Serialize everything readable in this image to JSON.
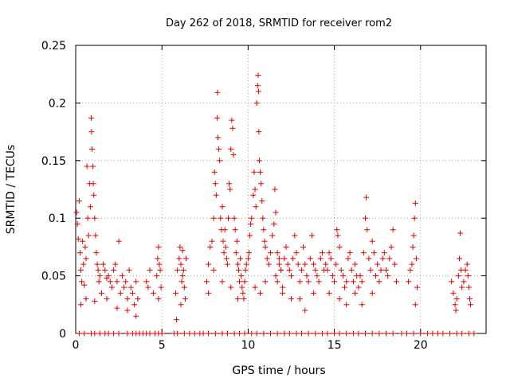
{
  "chart_data": {
    "type": "scatter",
    "title": "Day 262 of 2018, SRMTID for receiver rom2",
    "xlabel": "GPS time / hours",
    "ylabel": "SRMTID / TECUs",
    "xlim": [
      0,
      23.8
    ],
    "ylim": [
      0,
      0.25
    ],
    "xticks": [
      0,
      5,
      10,
      15,
      20
    ],
    "xtick_labels": [
      "0",
      "5",
      "10",
      "15",
      "20"
    ],
    "yticks": [
      0,
      0.05,
      0.1,
      0.15,
      0.2,
      0.25
    ],
    "ytick_labels": [
      "0",
      "0.05",
      "0.1",
      "0.15",
      "0.2",
      "0.25"
    ],
    "grid": true,
    "marker": "+",
    "color": "#e00000",
    "series": [
      {
        "name": "SRMTID",
        "points": [
          [
            0.05,
            0.105
          ],
          [
            0.1,
            0.095
          ],
          [
            0.15,
            0.082
          ],
          [
            0.2,
            0.115
          ],
          [
            0.25,
            0.07
          ],
          [
            0.3,
            0.055
          ],
          [
            0.35,
            0.045
          ],
          [
            0.4,
            0.08
          ],
          [
            0.45,
            0.06
          ],
          [
            0.5,
            0.042
          ],
          [
            0.55,
            0.075
          ],
          [
            0.6,
            0.065
          ],
          [
            0.65,
            0.145
          ],
          [
            0.7,
            0.1
          ],
          [
            0.75,
            0.085
          ],
          [
            0.8,
            0.13
          ],
          [
            0.85,
            0.11
          ],
          [
            0.9,
            0.187
          ],
          [
            0.92,
            0.175
          ],
          [
            0.95,
            0.16
          ],
          [
            1.0,
            0.145
          ],
          [
            1.02,
            0.13
          ],
          [
            1.05,
            0.12
          ],
          [
            1.1,
            0.1
          ],
          [
            1.15,
            0.085
          ],
          [
            1.2,
            0.07
          ],
          [
            1.25,
            0.06
          ],
          [
            1.3,
            0.055
          ],
          [
            1.35,
            0.045
          ],
          [
            1.4,
            0.05
          ],
          [
            1.5,
            0.035
          ],
          [
            1.6,
            0.06
          ],
          [
            1.7,
            0.055
          ],
          [
            1.8,
            0.048
          ],
          [
            1.9,
            0.05
          ],
          [
            2.0,
            0.045
          ],
          [
            2.1,
            0.04
          ],
          [
            2.2,
            0.055
          ],
          [
            2.3,
            0.06
          ],
          [
            2.4,
            0.045
          ],
          [
            2.5,
            0.08
          ],
          [
            2.6,
            0.035
          ],
          [
            2.7,
            0.05
          ],
          [
            2.8,
            0.04
          ],
          [
            2.9,
            0.045
          ],
          [
            3.0,
            0.03
          ],
          [
            3.1,
            0.055
          ],
          [
            3.2,
            0.04
          ],
          [
            3.3,
            0.035
          ],
          [
            3.4,
            0.025
          ],
          [
            3.5,
            0.045
          ],
          [
            3.6,
            0.03
          ],
          [
            0.3,
            0.025
          ],
          [
            0.6,
            0.03
          ],
          [
            1.1,
            0.028
          ],
          [
            1.8,
            0.03
          ],
          [
            2.4,
            0.022
          ],
          [
            3.0,
            0.02
          ],
          [
            3.5,
            0.015
          ],
          [
            4.1,
            0.045
          ],
          [
            4.2,
            0.04
          ],
          [
            4.3,
            0.055
          ],
          [
            4.5,
            0.035
          ],
          [
            4.7,
            0.05
          ],
          [
            4.75,
            0.065
          ],
          [
            4.8,
            0.075
          ],
          [
            4.85,
            0.06
          ],
          [
            4.9,
            0.055
          ],
          [
            4.95,
            0.04
          ],
          [
            4.8,
            0.03
          ],
          [
            5.8,
            0.035
          ],
          [
            5.9,
            0.055
          ],
          [
            6.0,
            0.065
          ],
          [
            6.05,
            0.075
          ],
          [
            6.1,
            0.06
          ],
          [
            6.15,
            0.045
          ],
          [
            6.2,
            0.05
          ],
          [
            6.25,
            0.055
          ],
          [
            6.3,
            0.04
          ],
          [
            6.35,
            0.03
          ],
          [
            6.4,
            0.065
          ],
          [
            6.1,
            0.025
          ],
          [
            5.85,
            0.012
          ],
          [
            6.2,
            0.072
          ],
          [
            7.6,
            0.045
          ],
          [
            7.7,
            0.06
          ],
          [
            7.8,
            0.075
          ],
          [
            7.9,
            0.08
          ],
          [
            8.0,
            0.1
          ],
          [
            8.05,
            0.14
          ],
          [
            8.1,
            0.13
          ],
          [
            8.15,
            0.12
          ],
          [
            8.2,
            0.187
          ],
          [
            8.22,
            0.209
          ],
          [
            8.25,
            0.17
          ],
          [
            8.3,
            0.16
          ],
          [
            8.35,
            0.15
          ],
          [
            8.4,
            0.1
          ],
          [
            8.45,
            0.09
          ],
          [
            8.5,
            0.11
          ],
          [
            8.55,
            0.08
          ],
          [
            8.6,
            0.07
          ],
          [
            8.65,
            0.09
          ],
          [
            8.7,
            0.075
          ],
          [
            8.75,
            0.065
          ],
          [
            8.8,
            0.06
          ],
          [
            8.85,
            0.1
          ],
          [
            8.9,
            0.13
          ],
          [
            8.95,
            0.125
          ],
          [
            9.0,
            0.16
          ],
          [
            9.05,
            0.185
          ],
          [
            9.1,
            0.178
          ],
          [
            9.15,
            0.155
          ],
          [
            9.2,
            0.1
          ],
          [
            9.25,
            0.09
          ],
          [
            9.3,
            0.07
          ],
          [
            9.35,
            0.08
          ],
          [
            9.4,
            0.06
          ],
          [
            9.45,
            0.055
          ],
          [
            9.5,
            0.045
          ],
          [
            9.55,
            0.065
          ],
          [
            9.6,
            0.05
          ],
          [
            9.65,
            0.04
          ],
          [
            9.7,
            0.035
          ],
          [
            9.75,
            0.03
          ],
          [
            9.8,
            0.045
          ],
          [
            9.85,
            0.055
          ],
          [
            9.9,
            0.06
          ],
          [
            7.7,
            0.035
          ],
          [
            8.0,
            0.055
          ],
          [
            8.5,
            0.045
          ],
          [
            9.0,
            0.04
          ],
          [
            9.4,
            0.03
          ],
          [
            10.0,
            0.065
          ],
          [
            10.05,
            0.07
          ],
          [
            10.1,
            0.085
          ],
          [
            10.15,
            0.095
          ],
          [
            10.2,
            0.1
          ],
          [
            10.3,
            0.12
          ],
          [
            10.35,
            0.14
          ],
          [
            10.4,
            0.125
          ],
          [
            10.45,
            0.11
          ],
          [
            10.5,
            0.2
          ],
          [
            10.55,
            0.215
          ],
          [
            10.58,
            0.224
          ],
          [
            10.6,
            0.21
          ],
          [
            10.62,
            0.175
          ],
          [
            10.65,
            0.15
          ],
          [
            10.7,
            0.14
          ],
          [
            10.75,
            0.13
          ],
          [
            10.8,
            0.115
          ],
          [
            10.85,
            0.1
          ],
          [
            10.9,
            0.09
          ],
          [
            10.95,
            0.08
          ],
          [
            11.0,
            0.075
          ],
          [
            11.1,
            0.065
          ],
          [
            11.2,
            0.06
          ],
          [
            11.3,
            0.07
          ],
          [
            11.4,
            0.085
          ],
          [
            11.5,
            0.095
          ],
          [
            11.55,
            0.125
          ],
          [
            11.6,
            0.105
          ],
          [
            11.7,
            0.07
          ],
          [
            11.8,
            0.06
          ],
          [
            11.9,
            0.055
          ],
          [
            10.4,
            0.04
          ],
          [
            10.7,
            0.035
          ],
          [
            11.0,
            0.045
          ],
          [
            11.6,
            0.05
          ],
          [
            11.7,
            0.045
          ],
          [
            11.8,
            0.065
          ],
          [
            11.9,
            0.055
          ],
          [
            12.0,
            0.04
          ],
          [
            12.1,
            0.065
          ],
          [
            12.2,
            0.075
          ],
          [
            12.3,
            0.06
          ],
          [
            12.4,
            0.055
          ],
          [
            12.5,
            0.05
          ],
          [
            12.6,
            0.065
          ],
          [
            12.7,
            0.085
          ],
          [
            12.8,
            0.07
          ],
          [
            12.9,
            0.06
          ],
          [
            13.0,
            0.045
          ],
          [
            13.1,
            0.055
          ],
          [
            13.2,
            0.075
          ],
          [
            13.3,
            0.06
          ],
          [
            13.4,
            0.05
          ],
          [
            13.5,
            0.045
          ],
          [
            13.6,
            0.065
          ],
          [
            13.7,
            0.085
          ],
          [
            13.8,
            0.06
          ],
          [
            13.9,
            0.055
          ],
          [
            14.0,
            0.05
          ],
          [
            14.1,
            0.045
          ],
          [
            14.2,
            0.065
          ],
          [
            14.3,
            0.07
          ],
          [
            14.4,
            0.055
          ],
          [
            12.0,
            0.035
          ],
          [
            12.5,
            0.03
          ],
          [
            13.0,
            0.03
          ],
          [
            13.3,
            0.02
          ],
          [
            13.8,
            0.035
          ],
          [
            14.5,
            0.06
          ],
          [
            14.6,
            0.055
          ],
          [
            14.7,
            0.07
          ],
          [
            14.8,
            0.065
          ],
          [
            14.9,
            0.05
          ],
          [
            15.0,
            0.045
          ],
          [
            15.1,
            0.06
          ],
          [
            15.15,
            0.09
          ],
          [
            15.2,
            0.085
          ],
          [
            15.3,
            0.075
          ],
          [
            15.4,
            0.055
          ],
          [
            15.5,
            0.05
          ],
          [
            15.6,
            0.04
          ],
          [
            15.7,
            0.045
          ],
          [
            15.8,
            0.065
          ],
          [
            15.9,
            0.07
          ],
          [
            16.0,
            0.055
          ],
          [
            16.1,
            0.045
          ],
          [
            16.2,
            0.06
          ],
          [
            16.3,
            0.05
          ],
          [
            16.4,
            0.04
          ],
          [
            16.5,
            0.05
          ],
          [
            16.6,
            0.045
          ],
          [
            16.7,
            0.07
          ],
          [
            16.8,
            0.1
          ],
          [
            16.85,
            0.118
          ],
          [
            16.9,
            0.09
          ],
          [
            17.0,
            0.065
          ],
          [
            17.1,
            0.055
          ],
          [
            17.2,
            0.08
          ],
          [
            17.3,
            0.07
          ],
          [
            17.4,
            0.05
          ],
          [
            17.5,
            0.06
          ],
          [
            17.6,
            0.045
          ],
          [
            17.7,
            0.055
          ],
          [
            17.8,
            0.065
          ],
          [
            17.9,
            0.07
          ],
          [
            18.0,
            0.055
          ],
          [
            18.1,
            0.05
          ],
          [
            18.2,
            0.065
          ],
          [
            18.3,
            0.075
          ],
          [
            18.4,
            0.09
          ],
          [
            18.5,
            0.06
          ],
          [
            18.6,
            0.045
          ],
          [
            14.7,
            0.035
          ],
          [
            15.3,
            0.03
          ],
          [
            15.7,
            0.025
          ],
          [
            16.2,
            0.035
          ],
          [
            16.6,
            0.025
          ],
          [
            17.2,
            0.035
          ],
          [
            19.3,
            0.045
          ],
          [
            19.4,
            0.055
          ],
          [
            19.5,
            0.06
          ],
          [
            19.55,
            0.075
          ],
          [
            19.6,
            0.085
          ],
          [
            19.65,
            0.1
          ],
          [
            19.7,
            0.113
          ],
          [
            19.75,
            0.065
          ],
          [
            19.8,
            0.04
          ],
          [
            19.7,
            0.025
          ],
          [
            21.8,
            0.045
          ],
          [
            21.9,
            0.035
          ],
          [
            22.0,
            0.025
          ],
          [
            22.05,
            0.02
          ],
          [
            22.1,
            0.03
          ],
          [
            22.2,
            0.05
          ],
          [
            22.25,
            0.065
          ],
          [
            22.3,
            0.087
          ],
          [
            22.35,
            0.055
          ],
          [
            22.4,
            0.04
          ],
          [
            22.5,
            0.045
          ],
          [
            22.6,
            0.055
          ],
          [
            22.7,
            0.06
          ],
          [
            22.75,
            0.05
          ],
          [
            22.8,
            0.04
          ],
          [
            22.85,
            0.03
          ],
          [
            22.9,
            0.025
          ]
        ]
      }
    ],
    "zero_value_times": [
      0.2,
      0.5,
      0.9,
      1.1,
      1.4,
      1.7,
      1.9,
      2.2,
      2.5,
      3.0,
      3.3,
      3.5,
      3.7,
      3.9,
      4.1,
      4.3,
      4.6,
      4.8,
      5.0,
      5.7,
      5.9,
      6.3,
      6.6,
      6.9,
      7.2,
      7.4,
      7.7,
      8.1,
      8.5,
      8.8,
      9.2,
      9.5,
      9.8,
      10.2,
      10.5,
      10.9,
      11.3,
      11.7,
      12.1,
      12.4,
      12.8,
      13.1,
      13.5,
      13.9,
      14.3,
      14.6,
      15.0,
      15.3,
      15.7,
      16.1,
      16.4,
      16.8,
      17.2,
      17.6,
      18.0,
      18.4,
      18.9,
      19.2,
      19.6,
      20.0,
      20.4,
      20.7,
      21.0,
      21.3,
      21.7,
      22.1,
      22.4,
      22.8,
      23.1
    ]
  }
}
